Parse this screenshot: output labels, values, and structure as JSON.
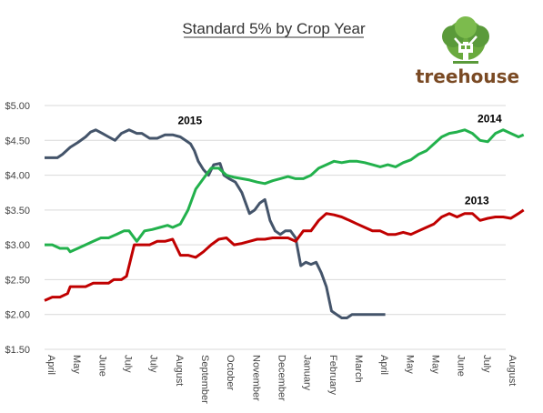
{
  "brand": {
    "name": "treehouse",
    "logo_icon": "tree-logo-icon",
    "color": "#7a4a24",
    "leaf_color": "#5a9a3a"
  },
  "chart_data": {
    "type": "line",
    "title": "Standard 5% by Crop Year",
    "xlabel": "",
    "ylabel": "",
    "ylim": [
      1.5,
      5.0
    ],
    "yticks": [
      "$1.50",
      "$2.00",
      "$2.50",
      "$3.00",
      "$3.50",
      "$4.00",
      "$4.50",
      "$5.00"
    ],
    "ytick_values": [
      1.5,
      2.0,
      2.5,
      3.0,
      3.5,
      4.0,
      4.5,
      5.0
    ],
    "xticks": [
      "April",
      "May",
      "June",
      "July",
      "July",
      "August",
      "September",
      "October",
      "November",
      "December",
      "January",
      "February",
      "March",
      "April",
      "May",
      "May",
      "June",
      "July",
      "August"
    ],
    "grid": true,
    "legend": "inline labels",
    "series": [
      {
        "name": "2015",
        "color": "#44546a",
        "x": [
          0,
          0.2,
          0.5,
          0.7,
          1.0,
          1.3,
          1.6,
          1.8,
          2.0,
          2.25,
          2.5,
          2.75,
          3.0,
          3.3,
          3.6,
          3.8,
          4.1,
          4.4,
          4.7,
          5.0,
          5.3,
          5.5,
          5.7,
          5.85,
          6.0,
          6.2,
          6.4,
          6.6,
          6.85,
          7.0,
          7.2,
          7.45,
          7.7,
          8.0,
          8.2,
          8.4,
          8.6,
          8.8,
          9.0,
          9.2,
          9.4,
          9.6,
          9.8,
          10.0,
          10.2,
          10.4,
          10.6,
          10.8,
          11.0,
          11.2,
          11.4,
          11.6,
          11.8,
          12.0,
          12.3,
          12.6,
          12.85,
          13.05,
          13.3
        ],
        "values": [
          4.25,
          4.25,
          4.25,
          4.3,
          4.4,
          4.47,
          4.55,
          4.62,
          4.65,
          4.6,
          4.55,
          4.5,
          4.6,
          4.65,
          4.6,
          4.6,
          4.53,
          4.53,
          4.58,
          4.58,
          4.55,
          4.5,
          4.45,
          4.35,
          4.2,
          4.08,
          4.0,
          4.15,
          4.17,
          4.0,
          3.95,
          3.9,
          3.75,
          3.45,
          3.5,
          3.6,
          3.65,
          3.35,
          3.2,
          3.15,
          3.2,
          3.2,
          3.1,
          2.7,
          2.75,
          2.72,
          2.75,
          2.6,
          2.4,
          2.05,
          2.0,
          1.95,
          1.95,
          2.0,
          2.0,
          2.0,
          2.0,
          2.0,
          2.0
        ]
      },
      {
        "name": "2014",
        "color": "#22b14c",
        "x": [
          0,
          0.3,
          0.6,
          0.9,
          1.0,
          1.3,
          1.6,
          1.9,
          2.2,
          2.5,
          2.8,
          3.1,
          3.3,
          3.6,
          3.9,
          4.2,
          4.5,
          4.8,
          5.0,
          5.3,
          5.6,
          5.9,
          6.2,
          6.5,
          6.8,
          7.1,
          7.4,
          7.7,
          8.0,
          8.3,
          8.6,
          8.9,
          9.2,
          9.5,
          9.8,
          10.1,
          10.4,
          10.7,
          11.0,
          11.3,
          11.6,
          11.9,
          12.2,
          12.5,
          12.8,
          13.1,
          13.4,
          13.7,
          14.0,
          14.3,
          14.6,
          14.9,
          15.2,
          15.5,
          15.8,
          16.1,
          16.4,
          16.7,
          17.0,
          17.3,
          17.6,
          17.9,
          18.2,
          18.5,
          18.7
        ],
        "values": [
          3.0,
          3.0,
          2.95,
          2.95,
          2.9,
          2.95,
          3.0,
          3.05,
          3.1,
          3.1,
          3.15,
          3.2,
          3.2,
          3.05,
          3.2,
          3.22,
          3.25,
          3.28,
          3.25,
          3.3,
          3.5,
          3.8,
          3.95,
          4.1,
          4.1,
          4.0,
          3.97,
          3.95,
          3.93,
          3.9,
          3.88,
          3.92,
          3.95,
          3.98,
          3.95,
          3.95,
          4.0,
          4.1,
          4.15,
          4.2,
          4.18,
          4.2,
          4.2,
          4.18,
          4.15,
          4.12,
          4.15,
          4.12,
          4.18,
          4.22,
          4.3,
          4.35,
          4.45,
          4.55,
          4.6,
          4.62,
          4.65,
          4.6,
          4.5,
          4.48,
          4.6,
          4.65,
          4.6,
          4.55,
          4.58
        ]
      },
      {
        "name": "2013",
        "color": "#c00000",
        "x": [
          0,
          0.3,
          0.6,
          0.9,
          1.0,
          1.3,
          1.6,
          1.9,
          2.2,
          2.5,
          2.7,
          3.0,
          3.2,
          3.5,
          3.8,
          4.1,
          4.4,
          4.7,
          5.0,
          5.3,
          5.6,
          5.9,
          6.2,
          6.5,
          6.8,
          7.1,
          7.4,
          7.7,
          8.0,
          8.3,
          8.6,
          8.9,
          9.2,
          9.5,
          9.8,
          10.1,
          10.4,
          10.7,
          11.0,
          11.3,
          11.6,
          11.9,
          12.2,
          12.5,
          12.8,
          13.1,
          13.4,
          13.7,
          14.0,
          14.3,
          14.6,
          14.9,
          15.2,
          15.5,
          15.8,
          16.1,
          16.4,
          16.7,
          17.0,
          17.3,
          17.6,
          17.9,
          18.2,
          18.5,
          18.7
        ],
        "values": [
          2.2,
          2.25,
          2.25,
          2.3,
          2.4,
          2.4,
          2.4,
          2.45,
          2.45,
          2.45,
          2.5,
          2.5,
          2.55,
          3.0,
          3.0,
          3.0,
          3.05,
          3.05,
          3.08,
          2.85,
          2.85,
          2.82,
          2.9,
          3.0,
          3.08,
          3.1,
          3.0,
          3.02,
          3.05,
          3.08,
          3.08,
          3.1,
          3.1,
          3.1,
          3.05,
          3.2,
          3.2,
          3.35,
          3.45,
          3.43,
          3.4,
          3.35,
          3.3,
          3.25,
          3.2,
          3.2,
          3.15,
          3.15,
          3.18,
          3.15,
          3.2,
          3.25,
          3.3,
          3.4,
          3.45,
          3.4,
          3.45,
          3.45,
          3.35,
          3.38,
          3.4,
          3.4,
          3.38,
          3.45,
          3.5
        ]
      }
    ],
    "series_label_positions": {
      "2015": {
        "x": 5.2,
        "y": 4.73
      },
      "2014": {
        "x": 16.9,
        "y": 4.76
      },
      "2013": {
        "x": 16.4,
        "y": 3.58
      }
    }
  }
}
